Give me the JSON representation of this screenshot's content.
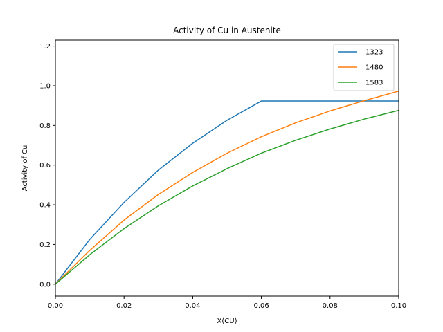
{
  "chart_data": {
    "type": "line",
    "title": "Activity of Cu in Austenite",
    "xlabel": "X(CU)",
    "ylabel": "Activity of Cu",
    "xlim": [
      0.0,
      0.1
    ],
    "ylim": [
      -0.06,
      1.23
    ],
    "xticks": [
      0.0,
      0.02,
      0.04,
      0.06,
      0.08,
      0.1
    ],
    "xtick_labels": [
      "0.00",
      "0.02",
      "0.04",
      "0.06",
      "0.08",
      "0.10"
    ],
    "yticks": [
      0.0,
      0.2,
      0.4,
      0.6,
      0.8,
      1.0,
      1.2
    ],
    "ytick_labels": [
      "0.0",
      "0.2",
      "0.4",
      "0.6",
      "0.8",
      "1.0",
      "1.2"
    ],
    "grid": false,
    "legend_position": "top-right",
    "x": [
      0.0,
      0.01,
      0.02,
      0.03,
      0.04,
      0.05,
      0.06,
      0.07,
      0.08,
      0.09,
      0.1
    ],
    "series": [
      {
        "name": "1323",
        "color": "#1f77b4",
        "values": [
          0.0,
          0.225,
          0.412,
          0.575,
          0.71,
          0.826,
          0.923,
          0.923,
          0.923,
          0.923,
          0.923
        ]
      },
      {
        "name": "1480",
        "color": "#ff7f0e",
        "values": [
          0.0,
          0.17,
          0.323,
          0.452,
          0.563,
          0.66,
          0.743,
          0.813,
          0.873,
          0.925,
          0.973
        ]
      },
      {
        "name": "1583",
        "color": "#2ca02c",
        "values": [
          0.0,
          0.148,
          0.28,
          0.395,
          0.495,
          0.582,
          0.66,
          0.725,
          0.782,
          0.832,
          0.876
        ]
      }
    ]
  }
}
